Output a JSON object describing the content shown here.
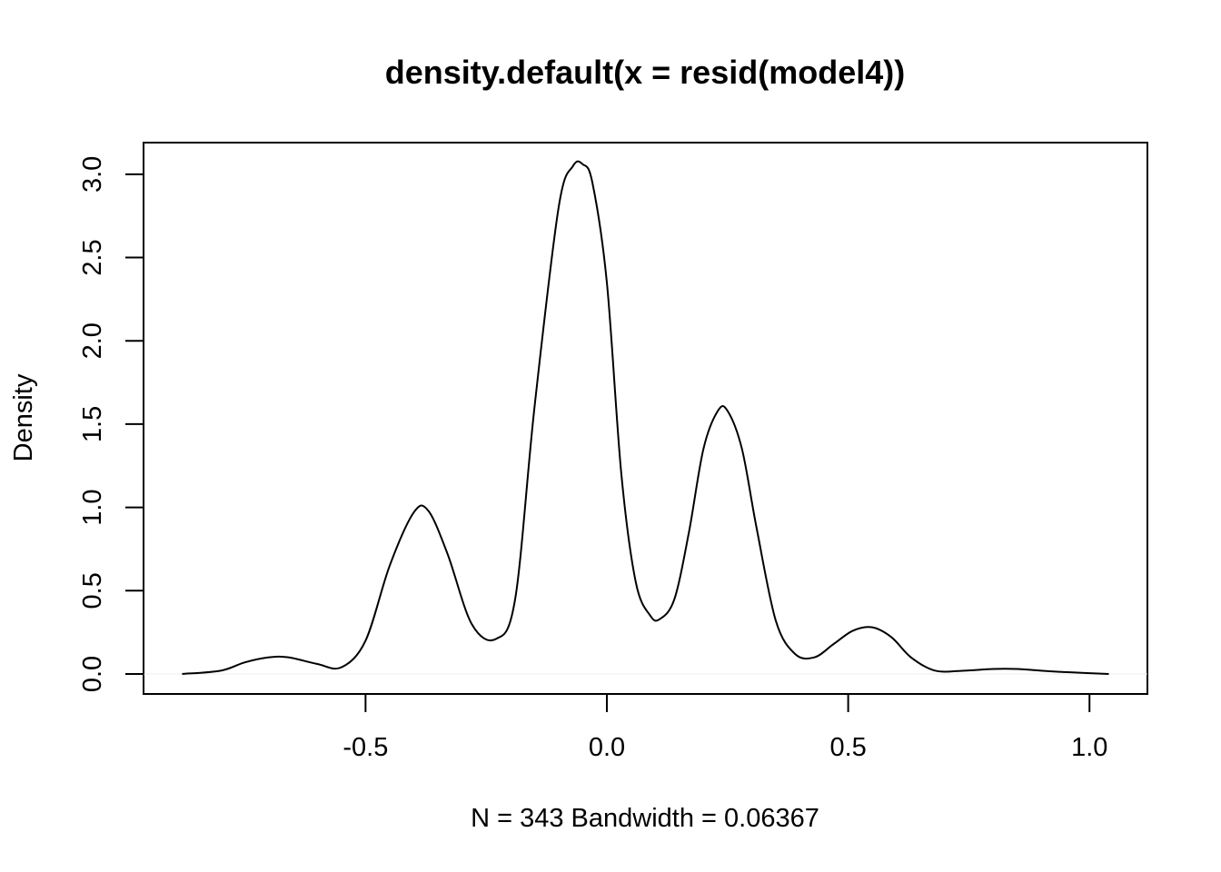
{
  "chart_data": {
    "type": "line",
    "title": "density.default(x = resid(model4))",
    "xlabel": "N = 343   Bandwidth = 0.06367",
    "ylabel": "Density",
    "xlim": [
      -0.96,
      1.12
    ],
    "ylim": [
      -0.12,
      3.19
    ],
    "x_ticks": [
      -0.5,
      0.0,
      0.5,
      1.0
    ],
    "x_tick_labels": [
      "-0.5",
      "0.0",
      "0.5",
      "1.0"
    ],
    "y_ticks": [
      0.0,
      0.5,
      1.0,
      1.5,
      2.0,
      2.5,
      3.0
    ],
    "y_tick_labels": [
      "0.0",
      "0.5",
      "1.0",
      "1.5",
      "2.0",
      "2.5",
      "3.0"
    ],
    "grid": false,
    "baseline_y": 0,
    "series": [
      {
        "color": "#000000",
        "x": [
          -0.88,
          -0.8,
          -0.75,
          -0.7,
          -0.66,
          -0.6,
          -0.55,
          -0.5,
          -0.45,
          -0.4,
          -0.37,
          -0.33,
          -0.28,
          -0.23,
          -0.19,
          -0.15,
          -0.1,
          -0.07,
          -0.05,
          -0.03,
          0.0,
          0.03,
          0.06,
          0.09,
          0.11,
          0.14,
          0.17,
          0.2,
          0.23,
          0.25,
          0.28,
          0.31,
          0.35,
          0.39,
          0.43,
          0.47,
          0.51,
          0.55,
          0.59,
          0.63,
          0.68,
          0.74,
          0.8,
          0.85,
          0.9,
          0.96,
          1.04
        ],
        "y": [
          0.0,
          0.02,
          0.07,
          0.1,
          0.1,
          0.06,
          0.04,
          0.2,
          0.65,
          0.97,
          0.98,
          0.72,
          0.3,
          0.21,
          0.45,
          1.6,
          2.8,
          3.05,
          3.06,
          2.95,
          2.35,
          1.2,
          0.55,
          0.35,
          0.33,
          0.45,
          0.85,
          1.35,
          1.58,
          1.58,
          1.35,
          0.88,
          0.32,
          0.12,
          0.1,
          0.18,
          0.26,
          0.28,
          0.22,
          0.1,
          0.02,
          0.02,
          0.03,
          0.03,
          0.02,
          0.01,
          0.0
        ]
      }
    ]
  }
}
